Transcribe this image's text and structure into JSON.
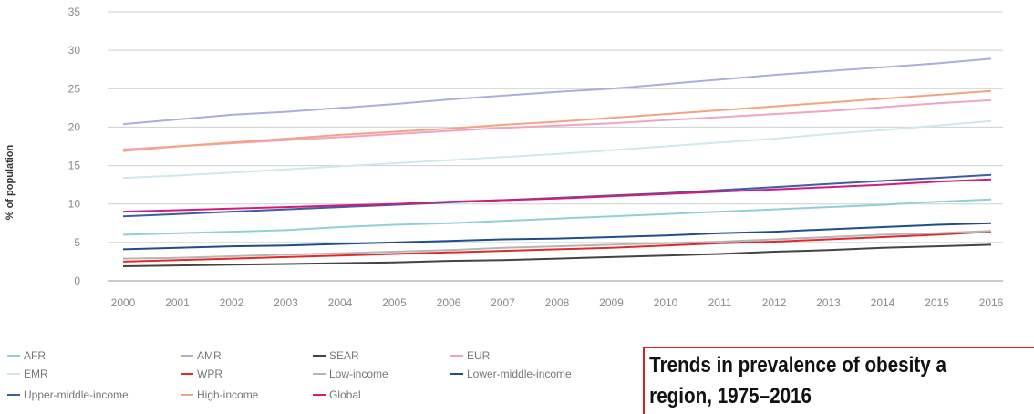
{
  "chart_data": {
    "type": "line",
    "title": "Trends in prevalence of obesity a region, 1975–2016",
    "title_lines": [
      "Trends in prevalence of obesity a",
      "region, 1975–2016"
    ],
    "xlabel": "",
    "ylabel": "% of population",
    "x": [
      2000,
      2001,
      2002,
      2003,
      2004,
      2005,
      2006,
      2007,
      2008,
      2009,
      2010,
      2011,
      2012,
      2013,
      2014,
      2015,
      2016
    ],
    "x_tick_labels": [
      "2000",
      "2001",
      "2002",
      "2003",
      "2004",
      "2005",
      "2006",
      "2007",
      "2008",
      "2009",
      "2010",
      "2011",
      "2012",
      "2013",
      "2014",
      "2015",
      "2016"
    ],
    "ylim": [
      0,
      35
    ],
    "y_ticks": [
      0,
      5,
      10,
      15,
      20,
      25,
      30,
      35
    ],
    "grid": true,
    "legend_position": "bottom-left",
    "series": [
      {
        "name": "AFR",
        "color": "#8fd0d6",
        "values": [
          6.0,
          6.2,
          6.4,
          6.6,
          7.0,
          7.3,
          7.5,
          7.8,
          8.1,
          8.4,
          8.7,
          9.0,
          9.3,
          9.6,
          9.9,
          10.3,
          10.6
        ]
      },
      {
        "name": "AMR",
        "color": "#a9aee0",
        "values": [
          20.4,
          21.0,
          21.6,
          22.0,
          22.5,
          23.0,
          23.6,
          24.1,
          24.6,
          25.0,
          25.6,
          26.2,
          26.8,
          27.3,
          27.8,
          28.3,
          28.9
        ]
      },
      {
        "name": "SEAR",
        "color": "#444444",
        "values": [
          1.9,
          2.0,
          2.1,
          2.2,
          2.3,
          2.4,
          2.6,
          2.7,
          2.9,
          3.1,
          3.3,
          3.5,
          3.8,
          4.0,
          4.3,
          4.5,
          4.7
        ]
      },
      {
        "name": "EUR",
        "color": "#f2a3c4",
        "values": [
          17.1,
          17.5,
          17.9,
          18.3,
          18.7,
          19.1,
          19.5,
          19.9,
          20.2,
          20.5,
          20.9,
          21.3,
          21.7,
          22.1,
          22.6,
          23.1,
          23.5
        ]
      },
      {
        "name": "EMR",
        "color": "#cfe8ec",
        "values": [
          13.4,
          13.7,
          14.1,
          14.5,
          14.9,
          15.3,
          15.7,
          16.1,
          16.5,
          17.0,
          17.5,
          18.0,
          18.5,
          19.1,
          19.6,
          20.2,
          20.8
        ]
      },
      {
        "name": "WPR",
        "color": "#e0292a",
        "values": [
          2.5,
          2.7,
          2.9,
          3.1,
          3.3,
          3.5,
          3.7,
          3.9,
          4.1,
          4.3,
          4.6,
          4.9,
          5.1,
          5.4,
          5.7,
          6.0,
          6.4
        ]
      },
      {
        "name": "Low-income",
        "color": "#b5b5b5",
        "values": [
          2.9,
          3.0,
          3.2,
          3.4,
          3.6,
          3.8,
          4.0,
          4.3,
          4.5,
          4.7,
          4.9,
          5.1,
          5.4,
          5.7,
          6.0,
          6.2,
          6.5
        ]
      },
      {
        "name": "Lower-middle-income",
        "color": "#1f4e8c",
        "values": [
          4.1,
          4.3,
          4.5,
          4.6,
          4.8,
          5.0,
          5.2,
          5.4,
          5.5,
          5.7,
          5.9,
          6.2,
          6.4,
          6.7,
          7.0,
          7.3,
          7.5
        ]
      },
      {
        "name": "Upper-middle-income",
        "color": "#3d5da8",
        "values": [
          8.4,
          8.7,
          9.0,
          9.3,
          9.6,
          9.9,
          10.2,
          10.5,
          10.8,
          11.1,
          11.4,
          11.8,
          12.2,
          12.6,
          13.0,
          13.4,
          13.8
        ]
      },
      {
        "name": "High-income",
        "color": "#f4a37e",
        "values": [
          16.9,
          17.5,
          18.0,
          18.5,
          19.0,
          19.4,
          19.8,
          20.3,
          20.7,
          21.2,
          21.7,
          22.2,
          22.7,
          23.2,
          23.7,
          24.2,
          24.7
        ]
      },
      {
        "name": "Global",
        "color": "#d6197a",
        "values": [
          9.0,
          9.2,
          9.4,
          9.6,
          9.8,
          10.0,
          10.3,
          10.5,
          10.7,
          11.0,
          11.3,
          11.6,
          11.9,
          12.2,
          12.5,
          12.9,
          13.2
        ]
      }
    ]
  }
}
